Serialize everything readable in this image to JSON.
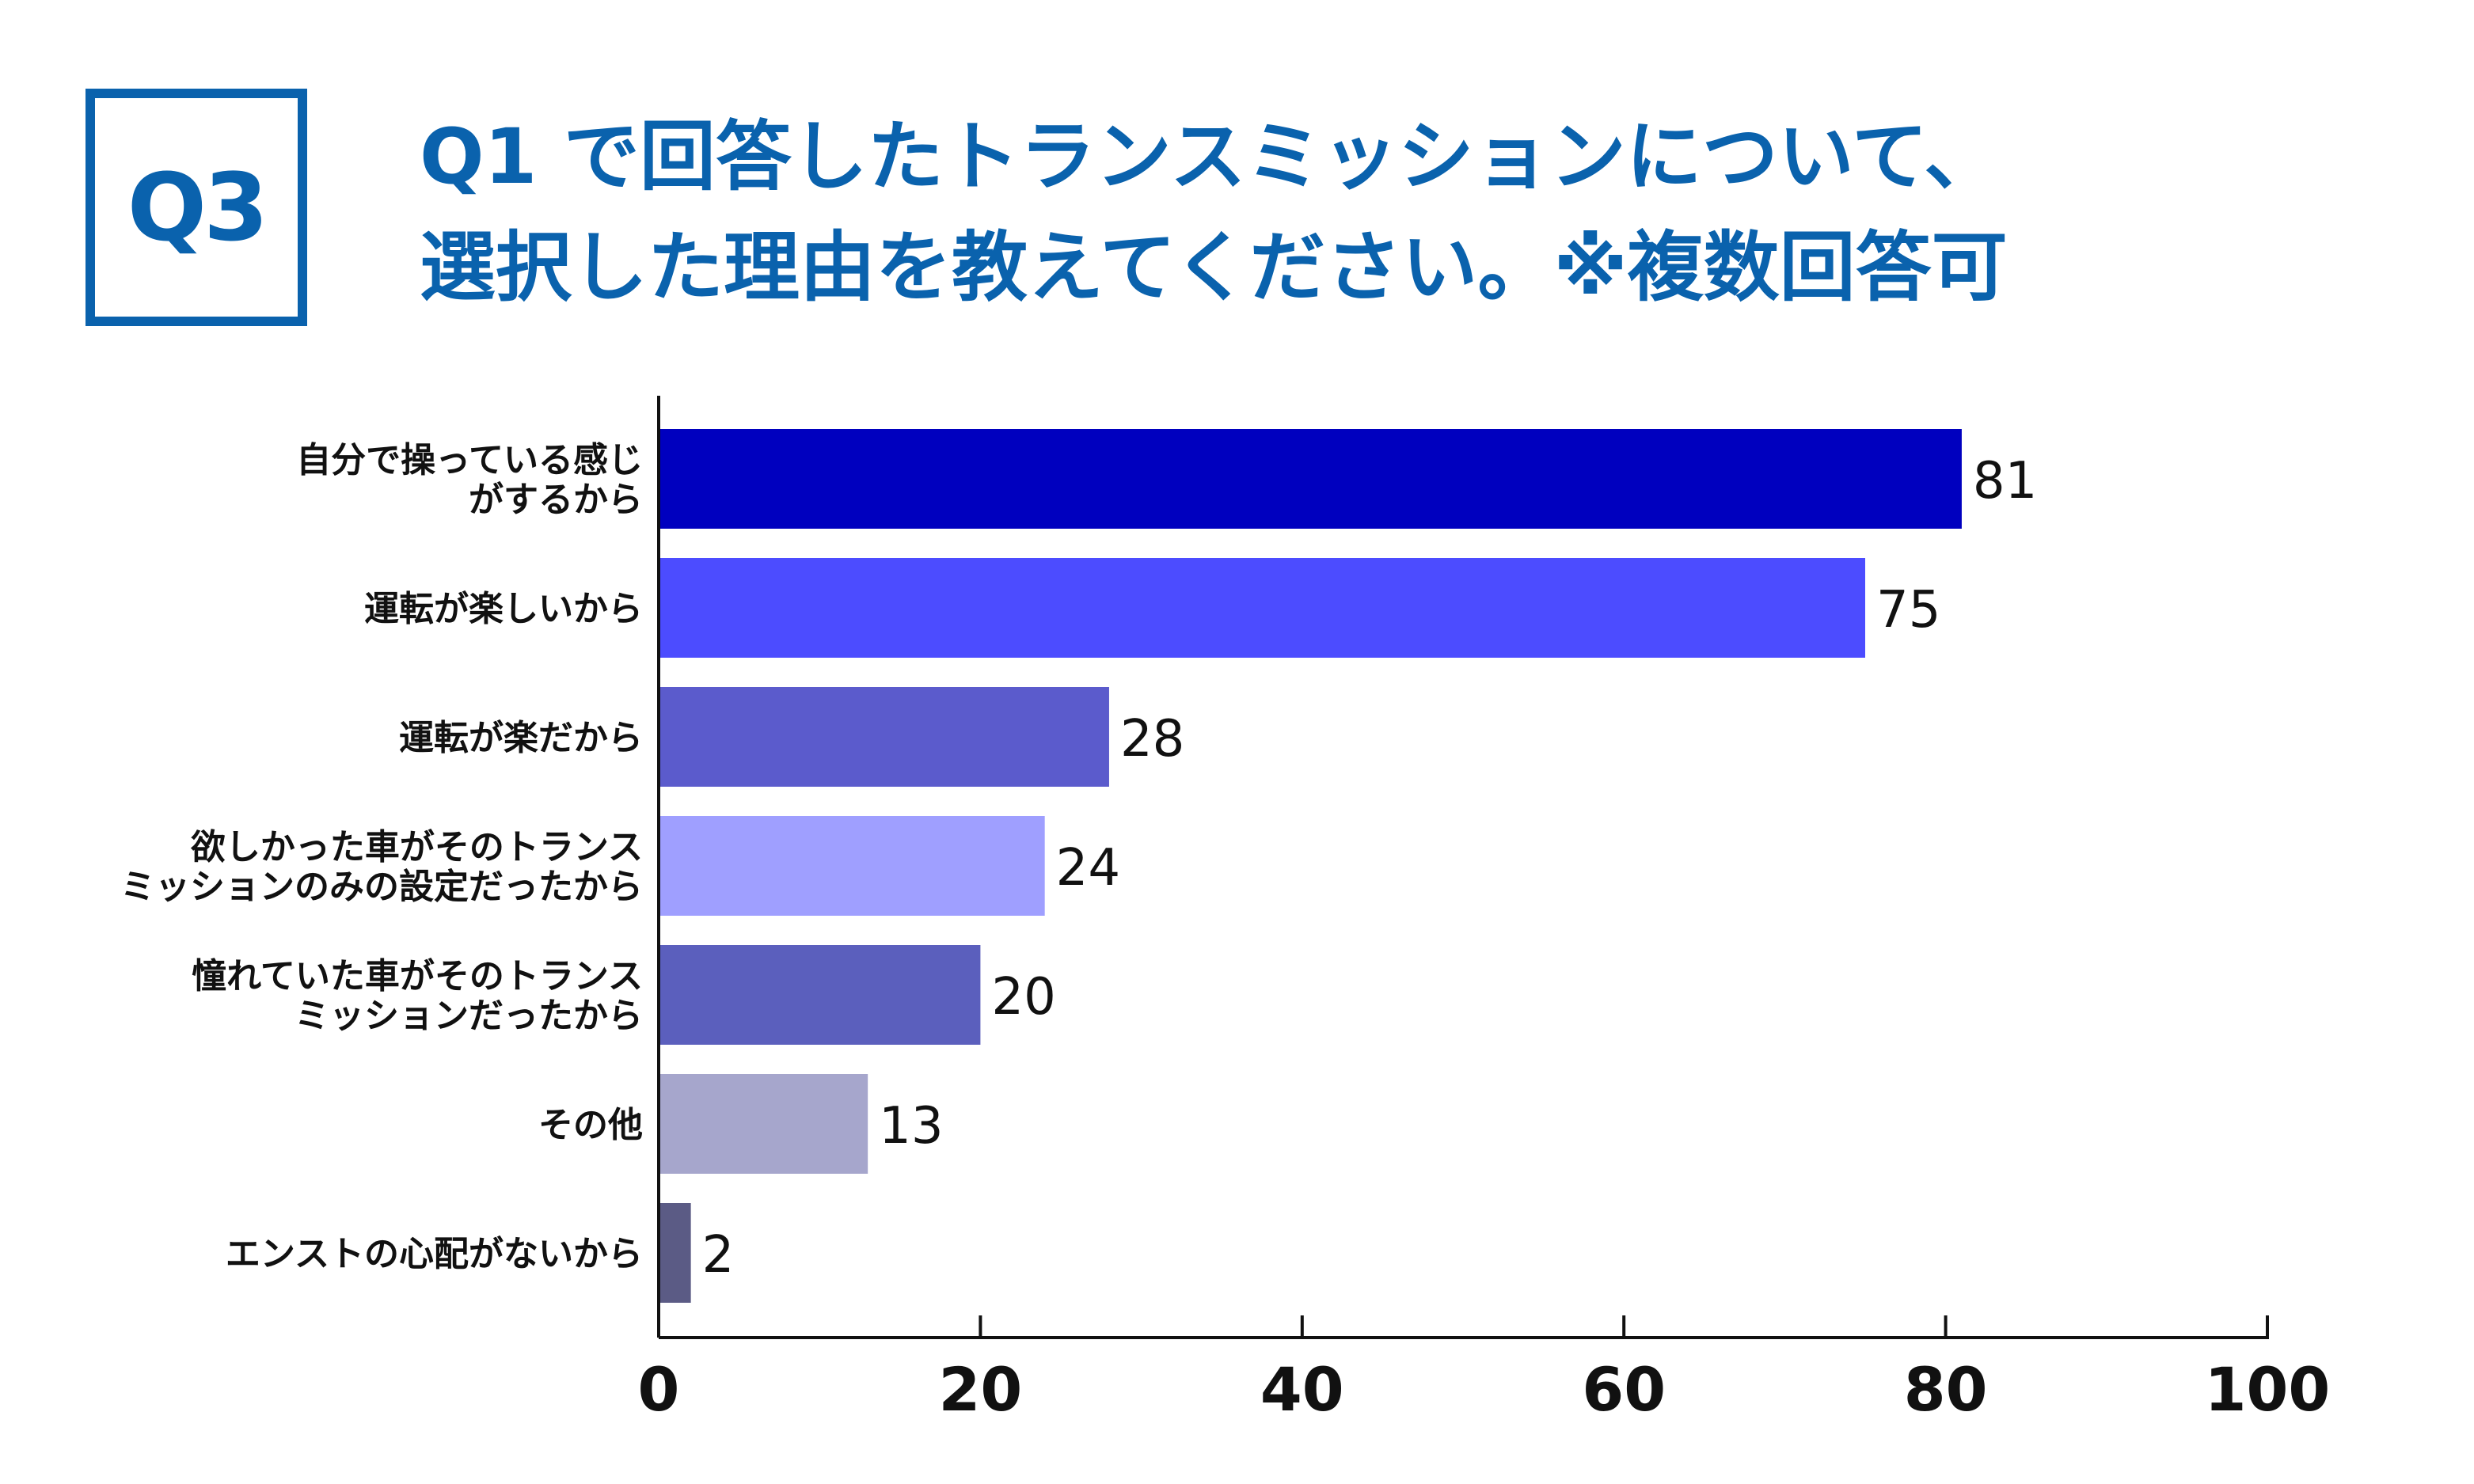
{
  "badge": "Q3",
  "title_lines": [
    "Q1 で回答したトランスミッションについて、",
    "選択した理由を教えてください。※複数回答可"
  ],
  "accent_color": "#0a62ad",
  "chart_data": {
    "type": "bar",
    "orientation": "horizontal",
    "categories": [
      [
        "自分で操っている感じ",
        "がするから"
      ],
      [
        "運転が楽しいから"
      ],
      [
        "運転が楽だから"
      ],
      [
        "欲しかった車がそのトランス",
        "ミッションのみの設定だったから"
      ],
      [
        "憧れていた車がそのトランス",
        "ミッションだったから"
      ],
      [
        "その他"
      ],
      [
        "エンストの心配がないから"
      ]
    ],
    "values": [
      81,
      75,
      28,
      24,
      20,
      13,
      2
    ],
    "data_labels": [
      "81",
      "75",
      "28",
      "24",
      "20",
      "13",
      "2"
    ],
    "colors": [
      "#0000bf",
      "#4c4cff",
      "#5b5bcc",
      "#9f9fff",
      "#5b5fbd",
      "#a6a6cc",
      "#5b5b85"
    ],
    "xlim": [
      0,
      100
    ],
    "xticks": [
      0,
      20,
      40,
      60,
      80,
      100
    ],
    "xtick_labels": [
      "0",
      "20",
      "40",
      "60",
      "80",
      "100"
    ],
    "grid": false,
    "legend": "none"
  }
}
